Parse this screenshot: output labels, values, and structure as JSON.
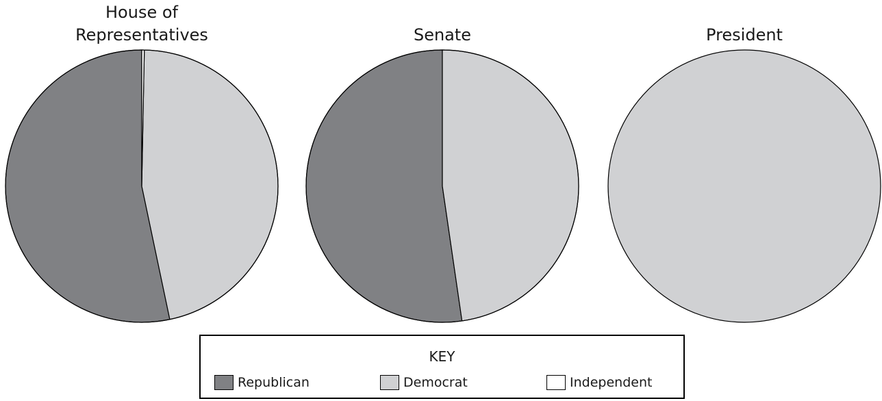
{
  "chart_data": [
    {
      "type": "pie",
      "title": "House of\nRepresentatives",
      "series": [
        {
          "name": "Republican",
          "value": 53.3
        },
        {
          "name": "Democrat",
          "value": 46.4
        },
        {
          "name": "Independent",
          "value": 0.3
        }
      ]
    },
    {
      "type": "pie",
      "title": "Senate",
      "series": [
        {
          "name": "Republican",
          "value": 52.3
        },
        {
          "name": "Democrat",
          "value": 47.7
        }
      ]
    },
    {
      "type": "pie",
      "title": "President",
      "series": [
        {
          "name": "Democrat",
          "value": 100
        }
      ]
    }
  ],
  "legend": {
    "title": "KEY",
    "items": [
      {
        "label": "Republican",
        "color": "#808184"
      },
      {
        "label": "Democrat",
        "color": "#d0d1d3"
      },
      {
        "label": "Independent",
        "color": "#ffffff"
      }
    ]
  }
}
